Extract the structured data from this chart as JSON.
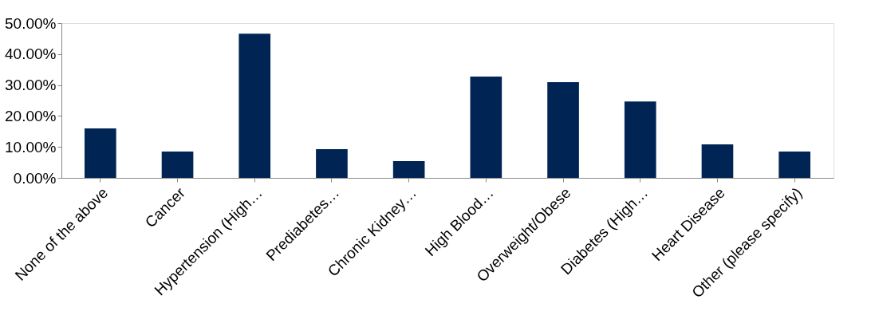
{
  "chart_data": {
    "type": "bar",
    "categories": [
      "None of the above",
      "Cancer",
      "Hypertension (High…",
      "Prediabetes…",
      "Chronic Kidney…",
      "High Blood…",
      "Overweight/Obese",
      "Diabetes (High…",
      "Heart Disease",
      "Other (please specify)"
    ],
    "values": [
      16.0,
      8.5,
      46.6,
      9.3,
      5.4,
      32.7,
      30.9,
      24.7,
      10.8,
      8.5
    ],
    "color": "#002554",
    "ylim": [
      0,
      50
    ],
    "yticks": [
      {
        "value": 0,
        "label": "0.00%"
      },
      {
        "value": 10,
        "label": "10.00%"
      },
      {
        "value": 20,
        "label": "20.00%"
      },
      {
        "value": 30,
        "label": "30.00%"
      },
      {
        "value": 40,
        "label": "40.00%"
      },
      {
        "value": 50,
        "label": "50.00%"
      }
    ],
    "grid": false
  }
}
